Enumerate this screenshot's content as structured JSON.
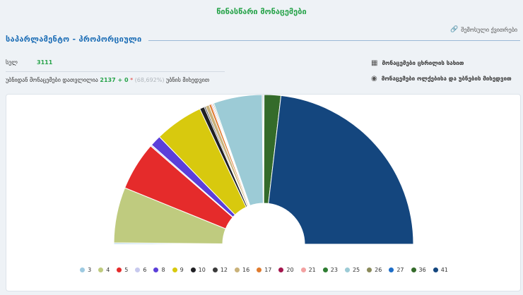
{
  "header": {
    "title": "წინასწარი მონაცემები"
  },
  "link": {
    "label": "შემოსული ქვითრები"
  },
  "section": {
    "title": "საპარლამენტო - პროპორციული"
  },
  "stats": {
    "total_label": "სულ",
    "total_value": "3111",
    "counted_prefix": "უბნიდან მონაცემები დათვლილია",
    "counted_value": "2137 + 0",
    "counted_star": "*",
    "counted_pct": "(68,692%)",
    "counted_suffix": "უბნის მიხედვით"
  },
  "options": {
    "table_view": "მონაცემები ცხრილის სახით",
    "by_region": "მონაცემები ოლქებისა და უბნების მიხედვით"
  },
  "colors": {
    "accent": "#27a34a",
    "title_blue": "#1a6cb5"
  },
  "chart_data": {
    "type": "pie",
    "subtype": "semi-donut",
    "title": "საპარლამენტო - პროპორციული",
    "series": [
      {
        "name": "3",
        "value": 0.3,
        "color": "#9ecae1"
      },
      {
        "name": "4",
        "value": 12.0,
        "color": "#bfcb7f"
      },
      {
        "name": "5",
        "value": 10.5,
        "color": "#e52b2b"
      },
      {
        "name": "6",
        "value": 0.3,
        "color": "#c7c9ee"
      },
      {
        "name": "8",
        "value": 2.4,
        "color": "#5b3fd9"
      },
      {
        "name": "9",
        "value": 10.5,
        "color": "#d8c90e"
      },
      {
        "name": "10",
        "value": 1.0,
        "color": "#202024"
      },
      {
        "name": "12",
        "value": 0.3,
        "color": "#3a3a3a"
      },
      {
        "name": "16",
        "value": 0.8,
        "color": "#c9b27a"
      },
      {
        "name": "17",
        "value": 0.5,
        "color": "#e07b2e"
      },
      {
        "name": "20",
        "value": 0.2,
        "color": "#a4164d"
      },
      {
        "name": "21",
        "value": 0.2,
        "color": "#f3a1a1"
      },
      {
        "name": "23",
        "value": 0.2,
        "color": "#2e7d32"
      },
      {
        "name": "25",
        "value": 10.5,
        "color": "#9ccbd6"
      },
      {
        "name": "26",
        "value": 0.2,
        "color": "#8a8a5a"
      },
      {
        "name": "27",
        "value": 0.2,
        "color": "#1e6ec8"
      },
      {
        "name": "36",
        "value": 3.6,
        "color": "#346b2a"
      },
      {
        "name": "41",
        "value": 46.3,
        "color": "#14467e"
      }
    ]
  }
}
